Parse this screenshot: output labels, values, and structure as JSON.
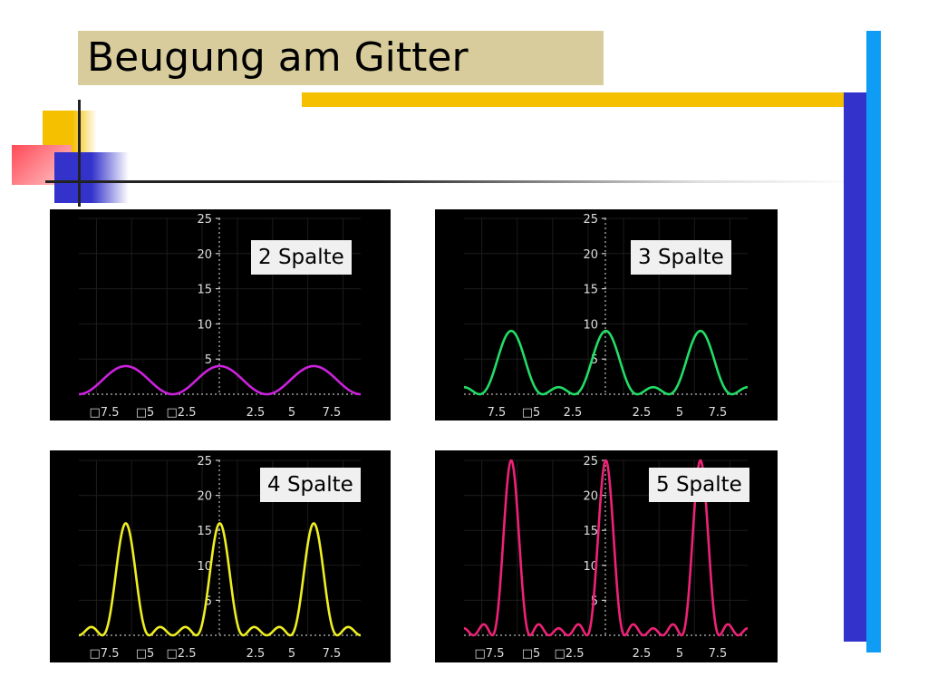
{
  "slide": {
    "title": "Beugung am Gitter"
  },
  "colors": {
    "title_bg": "#d8cc9c",
    "accent_yellow": "#f5c000",
    "accent_blue_dark": "#3333cc",
    "accent_blue_light": "#0f9cf5",
    "plot_bg": "#000000"
  },
  "chart_data": [
    {
      "type": "line",
      "title": "2 Spalte",
      "n": 2,
      "color": "#cc22dd",
      "x_range": [
        -9.42,
        9.42
      ],
      "ylim": [
        0,
        25
      ],
      "y_ticks": [
        "5",
        "10",
        "15",
        "20",
        "25"
      ],
      "x_tick_labels": [
        "□7.5",
        "□5",
        "□2.5",
        "2.5",
        "5",
        "7.5"
      ],
      "peak_x": [
        -6.28,
        0,
        6.28
      ],
      "peak_y": 4
    },
    {
      "type": "line",
      "title": "3 Spalte",
      "n": 3,
      "color": "#22dd66",
      "x_range": [
        -9.42,
        9.42
      ],
      "ylim": [
        0,
        25
      ],
      "y_ticks": [
        "5",
        "10",
        "15",
        "20",
        "25"
      ],
      "x_tick_labels": [
        "7.5",
        "□5",
        "2.5",
        "2.5",
        "5",
        "7.5"
      ],
      "peak_x": [
        -6.28,
        0,
        6.28
      ],
      "peak_y": 9
    },
    {
      "type": "line",
      "title": "4 Spalte",
      "n": 4,
      "color": "#eeee22",
      "x_range": [
        -9.42,
        9.42
      ],
      "ylim": [
        0,
        25
      ],
      "y_ticks": [
        "5",
        "10",
        "15",
        "20",
        "25"
      ],
      "x_tick_labels": [
        "□7.5",
        "□5",
        "□2.5",
        "2.5",
        "5",
        "7.5"
      ],
      "peak_x": [
        -6.28,
        0,
        6.28
      ],
      "peak_y": 16
    },
    {
      "type": "line",
      "title": "5 Spalte",
      "n": 5,
      "color": "#ee2277",
      "x_range": [
        -9.42,
        9.42
      ],
      "ylim": [
        0,
        25
      ],
      "y_ticks": [
        "5",
        "10",
        "15",
        "20",
        "25"
      ],
      "x_tick_labels": [
        "□7.5",
        "□5",
        "□2.5",
        "2.5",
        "5",
        "7.5"
      ],
      "peak_x": [
        -6.28,
        0,
        6.28
      ],
      "peak_y": 25
    }
  ]
}
